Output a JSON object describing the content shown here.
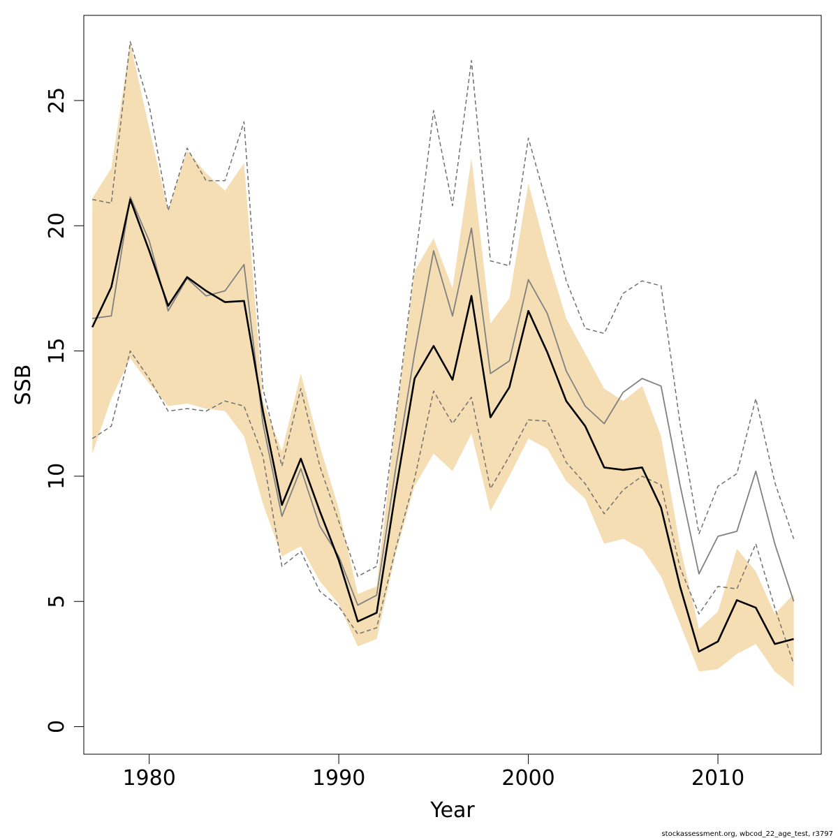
{
  "chart_data": {
    "type": "line",
    "xlabel": "Year",
    "ylabel": "SSB",
    "xlim": [
      1976.55,
      2015.45
    ],
    "ylim": [
      -1.1,
      28.4
    ],
    "x_ticks": [
      1980,
      1990,
      2000,
      2010
    ],
    "y_ticks": [
      0,
      5,
      10,
      15,
      20,
      25
    ],
    "x_tick_labels": [
      "1980",
      "1990",
      "2000",
      "2010"
    ],
    "y_tick_labels": [
      "0",
      "5",
      "10",
      "15",
      "20",
      "25"
    ],
    "grid": false,
    "legend": "none",
    "footnote": "stockassessment.org, wbcod_22_age_test, r3797",
    "x": [
      1977,
      1978,
      1979,
      1980,
      1981,
      1982,
      1983,
      1984,
      1985,
      1986,
      1987,
      1988,
      1989,
      1990,
      1991,
      1992,
      1993,
      1994,
      1995,
      1996,
      1997,
      1998,
      1999,
      2000,
      2001,
      2002,
      2003,
      2004,
      2005,
      2006,
      2007,
      2008,
      2009,
      2010,
      2011,
      2012,
      2013,
      2014
    ],
    "colors": {
      "band": "#f5deb3",
      "estimate": "#000000",
      "comparison": "#808080",
      "comparison_ci": "#707070"
    },
    "series": [
      {
        "role": "band_upper",
        "values": [
          21.1,
          22.3,
          27.3,
          23.9,
          20.6,
          23.0,
          22.1,
          21.4,
          22.5,
          13.0,
          11.0,
          14.1,
          11.2,
          8.7,
          5.3,
          5.6,
          12.2,
          18.2,
          19.5,
          17.5,
          22.7,
          16.1,
          17.1,
          21.7,
          18.8,
          16.3,
          14.9,
          13.5,
          13.0,
          13.6,
          11.6,
          7.2,
          3.9,
          4.6,
          7.1,
          6.2,
          4.5,
          5.3
        ]
      },
      {
        "role": "band_lower",
        "values": [
          10.9,
          13.1,
          14.7,
          13.7,
          12.8,
          12.9,
          12.7,
          12.6,
          11.6,
          8.9,
          6.8,
          7.2,
          5.8,
          4.9,
          3.2,
          3.5,
          6.9,
          9.6,
          10.9,
          10.2,
          11.7,
          8.6,
          10.0,
          11.5,
          11.1,
          9.8,
          9.1,
          7.3,
          7.5,
          7.1,
          6.0,
          4.1,
          2.2,
          2.3,
          2.9,
          3.3,
          2.2,
          1.6
        ]
      },
      {
        "role": "estimate",
        "values": [
          15.95,
          17.55,
          21.05,
          19.0,
          16.8,
          17.95,
          17.4,
          16.95,
          17.0,
          12.6,
          8.85,
          10.7,
          8.6,
          6.65,
          4.2,
          4.55,
          9.4,
          13.9,
          15.2,
          13.85,
          17.2,
          12.35,
          13.55,
          16.6,
          14.95,
          13.0,
          12.0,
          10.35,
          10.25,
          10.35,
          8.75,
          5.6,
          3.0,
          3.4,
          5.05,
          4.75,
          3.3,
          3.5
        ]
      },
      {
        "role": "comparison",
        "values": [
          16.3,
          16.4,
          21.15,
          19.4,
          16.6,
          17.9,
          17.2,
          17.4,
          18.45,
          12.1,
          8.4,
          10.3,
          8.0,
          6.8,
          4.85,
          5.25,
          10.3,
          14.9,
          19.0,
          16.4,
          19.9,
          14.1,
          14.6,
          17.85,
          16.5,
          14.2,
          12.8,
          12.1,
          13.35,
          13.9,
          13.6,
          9.65,
          6.1,
          7.6,
          7.8,
          10.2,
          7.3,
          5.0
        ]
      },
      {
        "role": "comparison_upper",
        "values": [
          21.05,
          20.9,
          27.35,
          24.8,
          20.6,
          23.1,
          21.8,
          21.8,
          24.15,
          13.5,
          10.4,
          13.5,
          10.4,
          8.2,
          6.0,
          6.4,
          12.3,
          18.4,
          24.6,
          20.8,
          26.6,
          18.6,
          18.4,
          23.5,
          20.8,
          17.8,
          15.9,
          15.7,
          17.3,
          17.8,
          17.6,
          12.1,
          7.7,
          9.6,
          10.1,
          13.1,
          9.75,
          7.5
        ]
      },
      {
        "role": "comparison_lower",
        "values": [
          11.5,
          12.0,
          15.0,
          13.9,
          12.6,
          12.7,
          12.6,
          13.0,
          12.8,
          10.8,
          6.4,
          7.0,
          5.4,
          4.8,
          3.7,
          3.95,
          7.1,
          9.9,
          13.4,
          12.1,
          13.15,
          9.5,
          10.8,
          12.25,
          12.2,
          10.55,
          9.7,
          8.5,
          9.45,
          10.0,
          9.65,
          6.35,
          4.5,
          5.6,
          5.5,
          7.3,
          4.75,
          2.5
        ]
      }
    ]
  }
}
